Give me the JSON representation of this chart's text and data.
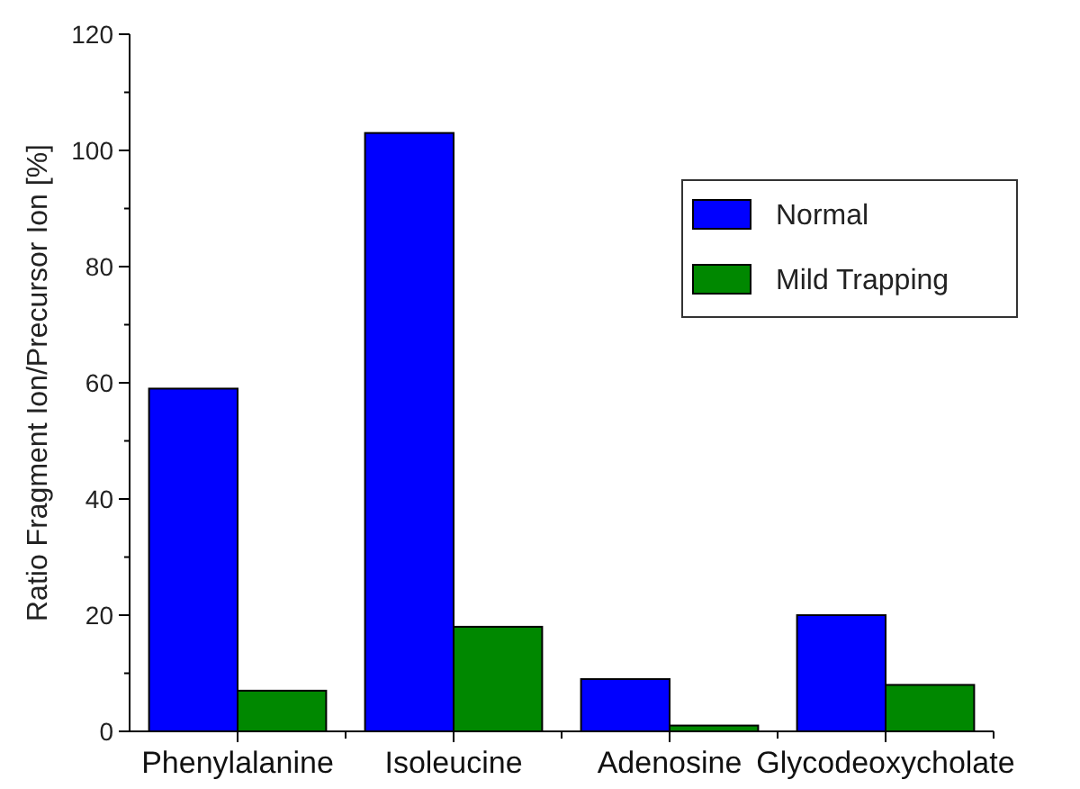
{
  "chart_data": {
    "type": "bar",
    "ylabel": "Ratio Fragment Ion/Precursor Ion [%]",
    "categories": [
      "Phenylalanine",
      "Isoleucine",
      "Adenosine",
      "Glycodeoxycholate"
    ],
    "series": [
      {
        "name": "Normal",
        "color": "#0000ff",
        "values": [
          59,
          103,
          9,
          20
        ]
      },
      {
        "name": "Mild Trapping",
        "color": "#008800",
        "values": [
          7,
          18,
          1,
          8
        ]
      }
    ],
    "ylim": [
      0,
      120
    ],
    "yticks": [
      0,
      {
        "value": 10,
        "label": null
      },
      20,
      {
        "value": 30,
        "label": null
      },
      40,
      {
        "value": 50,
        "label": null
      },
      60,
      {
        "value": 70,
        "label": null
      },
      80,
      {
        "value": 90,
        "label": null
      },
      100,
      {
        "value": 110,
        "label": null
      },
      120
    ],
    "grid": false,
    "legend": "top right"
  }
}
